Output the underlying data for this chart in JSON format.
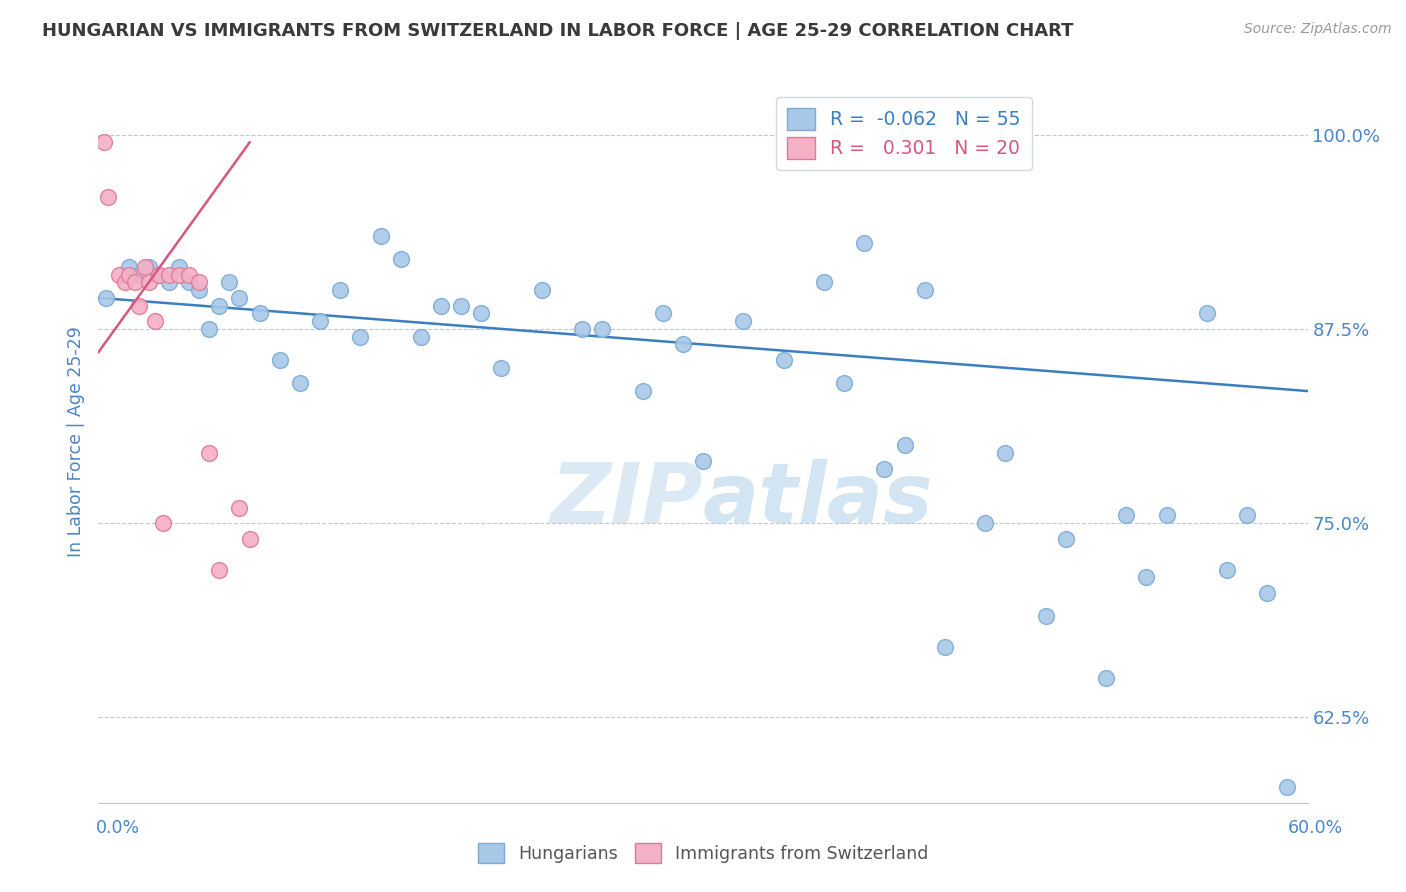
{
  "title": "HUNGARIAN VS IMMIGRANTS FROM SWITZERLAND IN LABOR FORCE | AGE 25-29 CORRELATION CHART",
  "source": "Source: ZipAtlas.com",
  "ylabel": "In Labor Force | Age 25-29",
  "ytick_vals": [
    62.5,
    75.0,
    87.5,
    100.0
  ],
  "ytick_labels": [
    "62.5%",
    "75.0%",
    "87.5%",
    "100.0%"
  ],
  "xmin": 0.0,
  "xmax": 60.0,
  "ymin": 57.0,
  "ymax": 103.5,
  "blue_R": -0.062,
  "blue_N": 55,
  "pink_R": 0.301,
  "pink_N": 20,
  "blue_color": "#a8c8e8",
  "blue_edge": "#7baad4",
  "pink_color": "#f4b0c4",
  "pink_edge": "#e07898",
  "blue_line_color": "#3a7fc1",
  "pink_line_color": "#d45880",
  "title_color": "#3a3a3a",
  "axis_color": "#4a86c8",
  "watermark_color": "#cce0f0",
  "blue_x": [
    0.4,
    1.5,
    2.0,
    2.5,
    3.0,
    3.5,
    4.0,
    4.5,
    5.0,
    5.5,
    6.0,
    6.5,
    7.0,
    8.0,
    9.0,
    10.0,
    11.0,
    12.0,
    13.0,
    14.0,
    15.0,
    16.0,
    17.0,
    18.0,
    19.0,
    20.0,
    22.0,
    24.0,
    25.0,
    27.0,
    28.0,
    29.0,
    30.0,
    32.0,
    34.0,
    36.0,
    37.0,
    38.0,
    39.0,
    40.0,
    41.0,
    42.0,
    44.0,
    45.0,
    47.0,
    48.0,
    50.0,
    51.0,
    52.0,
    53.0,
    55.0,
    56.0,
    57.0,
    58.0,
    59.0
  ],
  "blue_y": [
    89.5,
    91.5,
    91.0,
    91.5,
    91.0,
    90.5,
    91.5,
    90.5,
    90.0,
    87.5,
    89.0,
    90.5,
    89.5,
    88.5,
    85.5,
    84.0,
    88.0,
    90.0,
    87.0,
    93.5,
    92.0,
    87.0,
    89.0,
    89.0,
    88.5,
    85.0,
    90.0,
    87.5,
    87.5,
    83.5,
    88.5,
    86.5,
    79.0,
    88.0,
    85.5,
    90.5,
    84.0,
    93.0,
    78.5,
    80.0,
    90.0,
    67.0,
    75.0,
    79.5,
    69.0,
    74.0,
    65.0,
    75.5,
    71.5,
    75.5,
    88.5,
    72.0,
    75.5,
    70.5,
    58.0
  ],
  "pink_x": [
    0.3,
    0.5,
    1.0,
    1.3,
    1.5,
    1.8,
    2.0,
    2.3,
    2.5,
    2.8,
    3.0,
    3.2,
    3.5,
    4.0,
    4.5,
    5.0,
    5.5,
    6.0,
    7.0,
    7.5
  ],
  "pink_y": [
    99.5,
    96.0,
    91.0,
    90.5,
    91.0,
    90.5,
    89.0,
    91.5,
    90.5,
    88.0,
    91.0,
    75.0,
    91.0,
    91.0,
    91.0,
    90.5,
    79.5,
    72.0,
    76.0,
    74.0
  ],
  "blue_line_x0": 0.0,
  "blue_line_x1": 60.0,
  "blue_line_y0": 89.5,
  "blue_line_y1": 83.5,
  "pink_line_x0": 0.0,
  "pink_line_x1": 7.5,
  "pink_line_y0": 86.0,
  "pink_line_y1": 99.5
}
